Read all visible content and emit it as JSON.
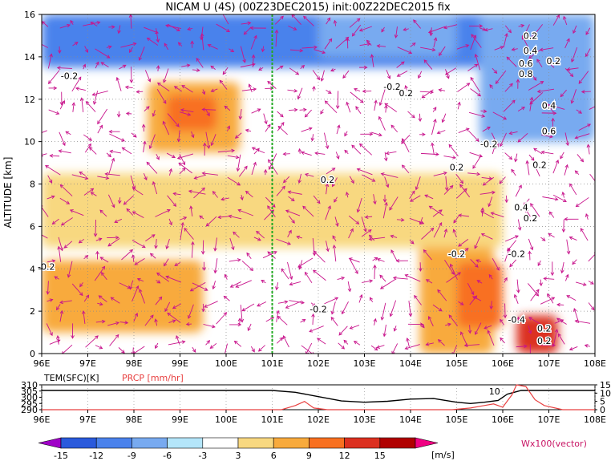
{
  "title": "NICAM U (4S) (00Z23DEC2015) init:00Z22DEC2015 fix",
  "chart_data": [
    {
      "type": "heatmap",
      "title": "NICAM U (4S) (00Z23DEC2015) init:00Z22DEC2015 fix",
      "xlabel": "",
      "ylabel": "ALTITUDE [km]",
      "x_ticks": [
        "96E",
        "97E",
        "98E",
        "99E",
        "100E",
        "101E",
        "102E",
        "103E",
        "104E",
        "105E",
        "106E",
        "107E",
        "108E"
      ],
      "y_ticks": [
        "0",
        "2",
        "4",
        "6",
        "8",
        "10",
        "12",
        "14",
        "16"
      ],
      "xlim": [
        96,
        108
      ],
      "ylim": [
        0,
        16
      ],
      "grid": true,
      "marker_line": {
        "x": 101,
        "color": "#22aa22"
      },
      "shading": [
        {
          "x": [
            104.2,
            105.8
          ],
          "y": [
            0.0,
            6.5
          ],
          "level": 6
        },
        {
          "x": [
            96.0,
            99.5
          ],
          "y": [
            1.0,
            4.4
          ],
          "level": 6
        },
        {
          "x": [
            105.0,
            106.0
          ],
          "y": [
            1.2,
            4.3
          ],
          "level": 9
        },
        {
          "x": [
            106.3,
            107.2
          ],
          "y": [
            0.0,
            1.8
          ],
          "level": 12
        },
        {
          "x": [
            98.3,
            100.3
          ],
          "y": [
            9.5,
            12.8
          ],
          "level": 6
        },
        {
          "x": [
            98.7,
            99.8
          ],
          "y": [
            10.5,
            12.2
          ],
          "level": 9
        },
        {
          "x": [
            96.0,
            106.0
          ],
          "y": [
            5.0,
            8.5
          ],
          "level": 3
        },
        {
          "x": [
            96.0,
            108.0
          ],
          "y": [
            13.5,
            16.0
          ],
          "level": -12
        },
        {
          "x": [
            105.5,
            108.0
          ],
          "y": [
            10.0,
            16.0
          ],
          "level": -9
        },
        {
          "x": [
            102.0,
            105.0
          ],
          "y": [
            14.0,
            16.0
          ],
          "level": -9
        }
      ],
      "contour_labels": [
        {
          "x": 96.6,
          "y": 13.1,
          "text": "-0.2"
        },
        {
          "x": 103.6,
          "y": 12.6,
          "text": "-0.2"
        },
        {
          "x": 103.9,
          "y": 12.3,
          "text": "0.2"
        },
        {
          "x": 106.6,
          "y": 15.0,
          "text": "0.2"
        },
        {
          "x": 106.6,
          "y": 14.3,
          "text": "0.4"
        },
        {
          "x": 106.5,
          "y": 13.7,
          "text": "0.6"
        },
        {
          "x": 106.5,
          "y": 13.2,
          "text": "0.8"
        },
        {
          "x": 107.1,
          "y": 13.8,
          "text": "0.2"
        },
        {
          "x": 107.0,
          "y": 11.7,
          "text": "0.4"
        },
        {
          "x": 107.0,
          "y": 10.5,
          "text": "0.6"
        },
        {
          "x": 105.7,
          "y": 9.9,
          "text": "-0.2"
        },
        {
          "x": 105.0,
          "y": 8.8,
          "text": "0.2"
        },
        {
          "x": 106.8,
          "y": 8.9,
          "text": "0.2"
        },
        {
          "x": 102.2,
          "y": 8.2,
          "text": "0.2"
        },
        {
          "x": 106.4,
          "y": 6.9,
          "text": "0.4"
        },
        {
          "x": 106.6,
          "y": 6.4,
          "text": "0.2"
        },
        {
          "x": 105.0,
          "y": 4.7,
          "text": "-0.2"
        },
        {
          "x": 106.3,
          "y": 4.7,
          "text": "-0.2"
        },
        {
          "x": 96.1,
          "y": 4.1,
          "text": "-0.2"
        },
        {
          "x": 102.0,
          "y": 2.1,
          "text": "-0.2"
        },
        {
          "x": 106.3,
          "y": 1.6,
          "text": "-0.4"
        },
        {
          "x": 106.9,
          "y": 1.2,
          "text": "0.2"
        },
        {
          "x": 106.9,
          "y": 0.6,
          "text": "0.2"
        }
      ]
    },
    {
      "type": "line",
      "x_ticks": [
        "96E",
        "97E",
        "98E",
        "99E",
        "100E",
        "101E",
        "102E",
        "103E",
        "104E",
        "105E",
        "106E",
        "107E",
        "108E"
      ],
      "xlim": [
        96,
        108
      ],
      "left_axis": {
        "label": "TEM(SFC)[K]",
        "ticks": [
          "290",
          "295",
          "300",
          "305",
          "310"
        ],
        "range": [
          290,
          310
        ]
      },
      "right_axis": {
        "label": "PRCP [mm/hr]",
        "ticks": [
          "0",
          "5",
          "10",
          "15"
        ],
        "range": [
          0,
          15
        ]
      },
      "series": [
        {
          "name": "TEM(SFC)[K]",
          "color": "#000000",
          "axis": "left",
          "x": [
            96,
            97,
            98,
            99,
            100,
            101,
            101.5,
            102,
            102.5,
            103,
            103.5,
            104,
            104.5,
            105,
            105.3,
            105.6,
            105.9,
            106.1,
            106.4,
            107,
            108
          ],
          "values": [
            305.5,
            305.5,
            305.5,
            305.5,
            305.5,
            305.5,
            304.0,
            300.5,
            297.0,
            296.0,
            296.8,
            298.5,
            299.0,
            296.0,
            295.0,
            296.0,
            297.5,
            302.5,
            305.5,
            305.5,
            305.5
          ]
        },
        {
          "name": "PRCP [mm/hr]",
          "color": "#e84040",
          "axis": "right",
          "x": [
            96,
            101.2,
            101.5,
            101.7,
            101.9,
            102.2,
            104.9,
            105.3,
            105.6,
            105.8,
            106.0,
            106.2,
            106.3,
            106.5,
            106.7,
            106.9,
            107.3,
            108
          ],
          "values": [
            0,
            0,
            2.5,
            5.0,
            1.0,
            0,
            0,
            1.0,
            2.5,
            3.5,
            1.5,
            9.0,
            15.0,
            14.0,
            6.0,
            2.5,
            0,
            0
          ]
        }
      ],
      "annotations": [
        {
          "x": 105.7,
          "text": "10"
        }
      ]
    }
  ],
  "colorbar": {
    "levels": [
      "-15",
      "-12",
      "-9",
      "-6",
      "-3",
      "3",
      "6",
      "9",
      "12",
      "15"
    ],
    "colors": [
      "#a000c8",
      "#2a5adc",
      "#4a82ec",
      "#78aaf0",
      "#b4e6fa",
      "#ffffff",
      "#f8d880",
      "#f8aa3c",
      "#f87020",
      "#dc3020",
      "#b00000",
      "#f00082"
    ],
    "unit_label": "[m/s]"
  },
  "vector_label": "Wx100(vector)"
}
